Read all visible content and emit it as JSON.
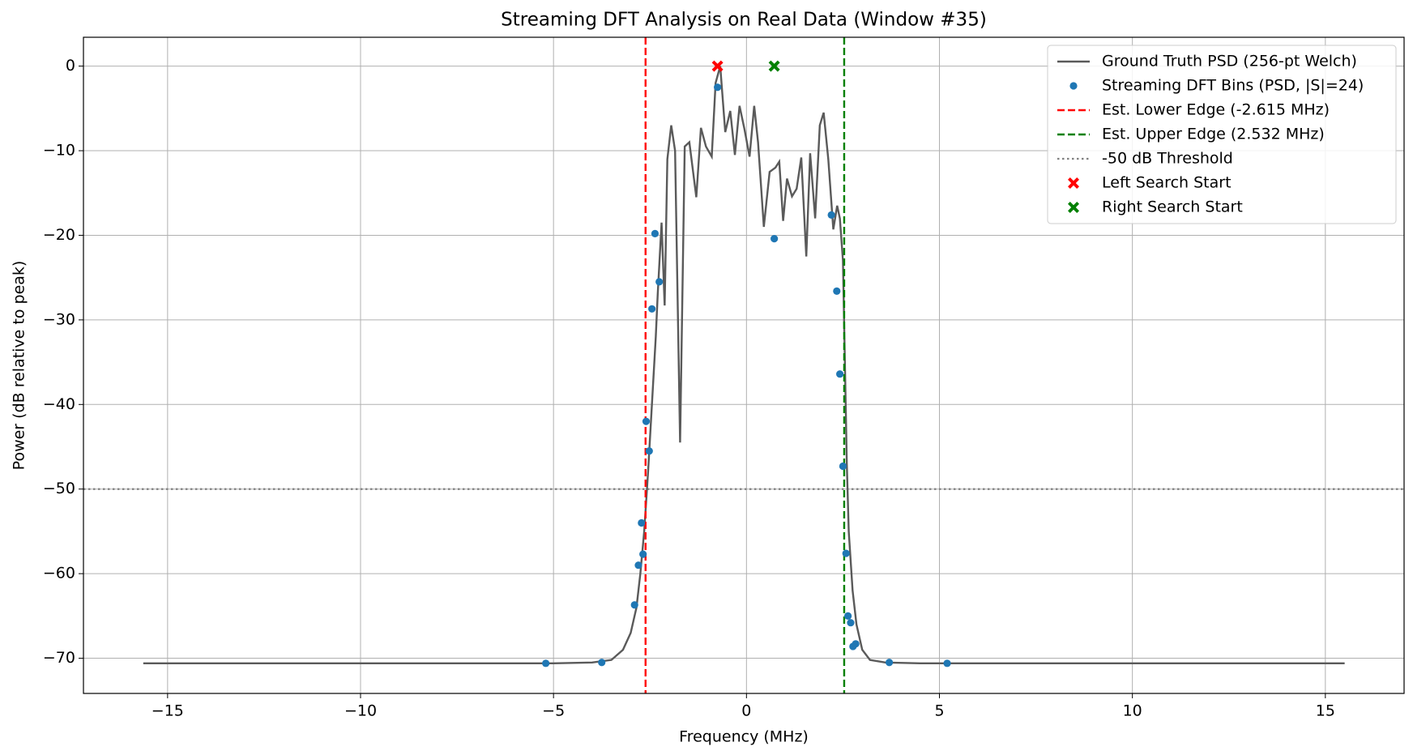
{
  "chart_data": {
    "type": "line",
    "title": "Streaming DFT Analysis on Real Data (Window #35)",
    "x_label": "Frequency (MHz)",
    "y_label": "Power (dB relative to peak)",
    "xlim": [
      -17.18,
      17.04
    ],
    "ylim": [
      -74.16,
      3.41
    ],
    "xticks": [
      {
        "value": -15,
        "label": "−15"
      },
      {
        "value": -10,
        "label": "−10"
      },
      {
        "value": -5,
        "label": "−5"
      },
      0,
      5,
      10,
      15
    ],
    "yticks": [
      0,
      {
        "value": -10,
        "label": "−10"
      },
      {
        "value": -20,
        "label": "−20"
      },
      {
        "value": -30,
        "label": "−30"
      },
      {
        "value": -40,
        "label": "−40"
      },
      {
        "value": -50,
        "label": "−50"
      },
      {
        "value": -60,
        "label": "−60"
      },
      {
        "value": -70,
        "label": "−70"
      }
    ],
    "grid": true,
    "legend": "upper right",
    "series": [
      {
        "name": "Ground Truth PSD (256-pt Welch)",
        "style": "line",
        "color": "#5a5a5a",
        "x": [
          -15.63,
          -5,
          -4,
          -3.5,
          -3.2,
          -3.0,
          -2.85,
          -2.75,
          -2.65,
          -2.55,
          -2.45,
          -2.35,
          -2.3,
          -2.2,
          -2.12,
          -2.05,
          -1.95,
          -1.85,
          -1.72,
          -1.6,
          -1.48,
          -1.3,
          -1.18,
          -1.05,
          -0.9,
          -0.8,
          -0.68,
          -0.55,
          -0.42,
          -0.3,
          -0.18,
          -0.05,
          0.08,
          0.2,
          0.3,
          0.45,
          0.6,
          0.75,
          0.85,
          0.95,
          1.05,
          1.18,
          1.3,
          1.42,
          1.55,
          1.65,
          1.78,
          1.9,
          2.0,
          2.12,
          2.25,
          2.35,
          2.42,
          2.5,
          2.55,
          2.6,
          2.65,
          2.75,
          2.85,
          3.0,
          3.2,
          3.6,
          4.5,
          15.5
        ],
        "values": [
          -70.6,
          -70.6,
          -70.5,
          -70.2,
          -69,
          -67,
          -64,
          -60,
          -55,
          -48,
          -40,
          -32,
          -27,
          -18.5,
          -28.3,
          -11,
          -7,
          -10,
          -44.5,
          -9.5,
          -9,
          -15.5,
          -7.3,
          -9.5,
          -10.7,
          -2,
          0,
          -7.8,
          -5.3,
          -10.5,
          -4.7,
          -7.5,
          -10.7,
          -4.7,
          -9,
          -19,
          -12.5,
          -12,
          -11.3,
          -18.3,
          -13.3,
          -15.4,
          -14.5,
          -10.8,
          -22.5,
          -10.3,
          -18,
          -7,
          -5.5,
          -11,
          -19.3,
          -16.5,
          -18,
          -23,
          -35,
          -47,
          -55,
          -62,
          -66,
          -69,
          -70.2,
          -70.5,
          -70.6,
          -70.6
        ]
      },
      {
        "name": "Streaming DFT Bins (PSD, |S|=24)",
        "style": "points",
        "color": "#1f77b4",
        "x": [
          -5.2,
          -3.75,
          -2.9,
          -2.8,
          -2.72,
          -2.68,
          -2.6,
          -2.52,
          -2.45,
          -2.37,
          -2.26,
          -0.75,
          0.72,
          2.2,
          2.34,
          2.42,
          2.5,
          2.58,
          2.63,
          2.7,
          2.76,
          2.83,
          3.7,
          5.2
        ],
        "values": [
          -70.6,
          -70.5,
          -63.7,
          -59,
          -54,
          -57.7,
          -42,
          -45.5,
          -28.7,
          -19.8,
          -25.5,
          -2.5,
          -20.4,
          -17.6,
          -26.6,
          -36.4,
          -47.3,
          -57.6,
          -65,
          -65.8,
          -68.6,
          -68.3,
          -70.5,
          -70.6
        ]
      },
      {
        "name": "Est. Lower Edge (-2.615 MHz)",
        "style": "vline",
        "color": "#ff0000",
        "x": -2.615
      },
      {
        "name": "Est. Upper Edge (2.532 MHz)",
        "style": "vline",
        "color": "#008000",
        "x": 2.532
      },
      {
        "name": "-50 dB Threshold",
        "style": "hline",
        "color": "#808080",
        "value": -50
      },
      {
        "name": "Left Search Start",
        "style": "marker",
        "color": "#ff0000",
        "x": [
          -0.75
        ],
        "values": [
          0
        ]
      },
      {
        "name": "Right Search Start",
        "style": "marker",
        "color": "#008000",
        "x": [
          0.72
        ],
        "values": [
          0
        ]
      }
    ]
  }
}
